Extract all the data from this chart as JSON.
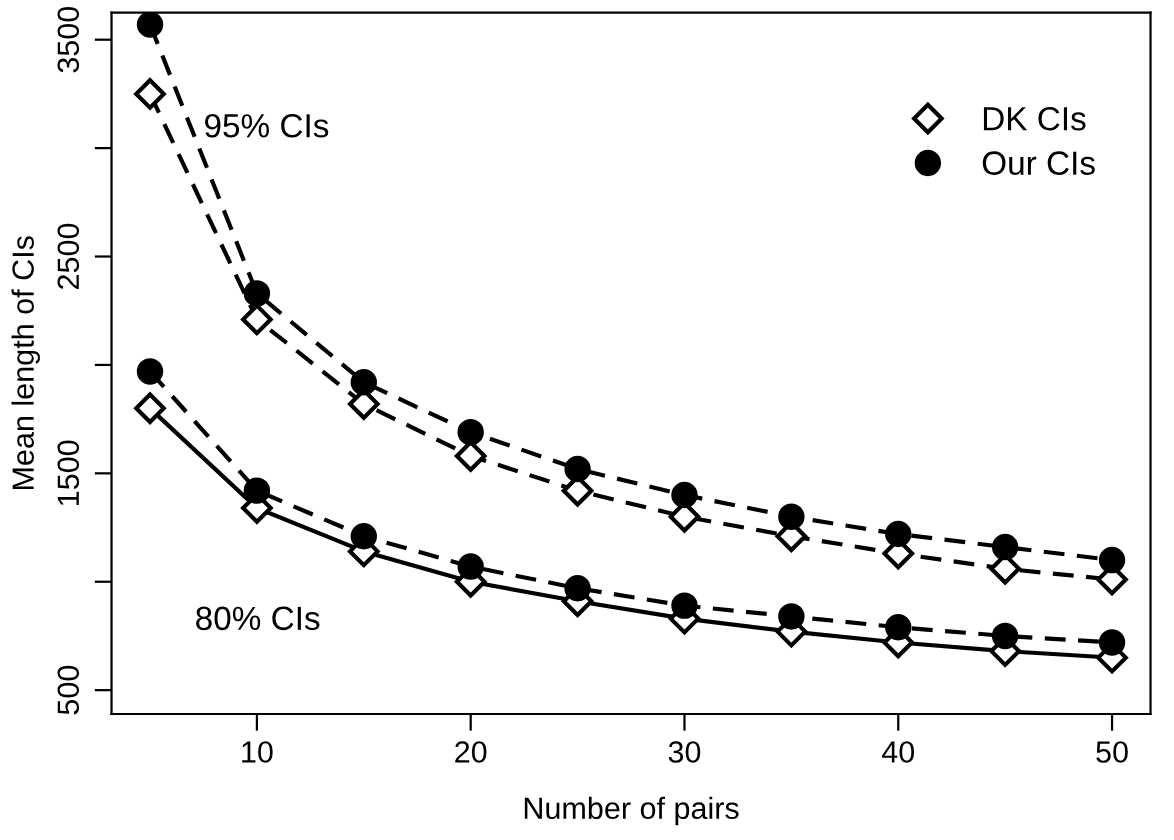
{
  "chart_data": {
    "type": "line",
    "xlabel": "Number of pairs",
    "ylabel": "Mean length of CIs",
    "x": [
      5,
      10,
      15,
      20,
      25,
      30,
      35,
      40,
      45,
      50
    ],
    "series": [
      {
        "name": "DK CIs",
        "color": "#000000",
        "marker": "diamond",
        "line_style": "dashed",
        "values": [
          3250,
          2210,
          1820,
          1580,
          1420,
          1300,
          1210,
          1130,
          1060,
          1010
        ]
      },
      {
        "name": "Our CIs",
        "color": "#000000",
        "marker": "circle",
        "line_style": "dashed",
        "values": [
          3570,
          2330,
          1920,
          1690,
          1520,
          1400,
          1300,
          1220,
          1160,
          1100
        ]
      },
      {
        "color": "#000000",
        "marker": "diamond",
        "line_style": "solid",
        "values": [
          1800,
          1340,
          1140,
          1000,
          910,
          830,
          770,
          720,
          680,
          650
        ]
      },
      {
        "color": "#000000",
        "marker": "circle",
        "line_style": "dashed",
        "values": [
          1970,
          1420,
          1210,
          1070,
          970,
          890,
          840,
          790,
          750,
          720
        ]
      }
    ],
    "xlim": [
      3.2,
      51.8
    ],
    "ylim": [
      390,
      3625
    ],
    "xticks": [
      10,
      20,
      30,
      40,
      50
    ],
    "yticks": [
      500,
      {
        "value": 1000,
        "label": null
      },
      1500,
      {
        "value": 2000,
        "label": null
      },
      2500,
      {
        "value": 3000,
        "label": null
      },
      3500
    ],
    "annotations": [
      {
        "text": "95% CIs",
        "x": 7.5,
        "y": 3050
      },
      "80% CIs"
    ],
    "legend": "top right",
    "grid": false
  }
}
